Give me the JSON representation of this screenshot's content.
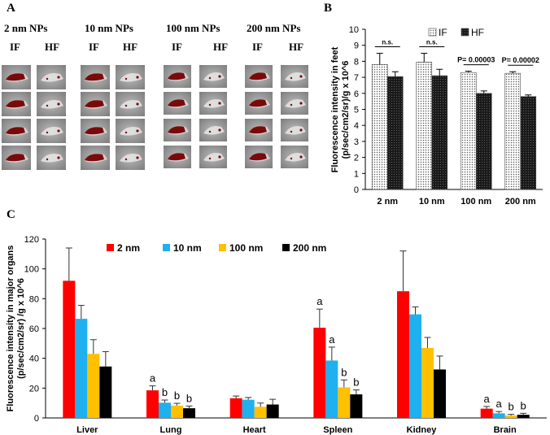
{
  "panel_labels": {
    "a": "A",
    "b": "B",
    "c": "C"
  },
  "panel_a": {
    "groups": [
      {
        "title": "2 nm NPs",
        "if_label": "IF",
        "hf_label": "HF"
      },
      {
        "title": "10 nm NPs",
        "if_label": "IF",
        "hf_label": "HF"
      },
      {
        "title": "100 nm NPs",
        "if_label": "IF",
        "hf_label": "HF"
      },
      {
        "title": "200 nm NPs",
        "if_label": "IF",
        "hf_label": "HF"
      }
    ]
  },
  "chart_data": [
    {
      "id": "B",
      "type": "bar",
      "ylabel": "Fluorescence intensity in feet (p/sec/cm2/sr)/g x 10^6",
      "ylim": [
        0,
        10
      ],
      "yticks": [
        "0",
        "1",
        "2",
        "3",
        "4",
        "5",
        "6",
        "7",
        "8",
        "9",
        "10"
      ],
      "categories": [
        "2 nm",
        "10 nm",
        "100 nm",
        "200 nm"
      ],
      "legend_position": "top",
      "series": [
        {
          "name": "IF",
          "values": [
            7.8,
            7.95,
            7.3,
            7.25
          ],
          "errors": [
            0.7,
            0.55,
            0.08,
            0.1
          ]
        },
        {
          "name": "HF",
          "values": [
            7.05,
            7.1,
            6.0,
            5.8
          ],
          "errors": [
            0.3,
            0.4,
            0.15,
            0.1
          ]
        }
      ],
      "annotations": [
        "n.s.",
        "n.s.",
        "P= 0.00003",
        "P= 0.00002"
      ]
    },
    {
      "id": "C",
      "type": "bar",
      "ylabel": "Fluorescence intensity in major organs (p/sec/cm2/sr) /g x 10^6",
      "ylim": [
        0,
        120
      ],
      "yticks": [
        "0",
        "20",
        "40",
        "60",
        "80",
        "100",
        "120"
      ],
      "categories": [
        "Liver",
        "Lung",
        "Heart",
        "Spleen",
        "Kidney",
        "Brain"
      ],
      "legend_position": "top",
      "series": [
        {
          "name": "2 nm",
          "color": "#ff0000",
          "values": [
            92,
            18.5,
            13.2,
            60.5,
            85,
            6.2
          ],
          "errors": [
            22,
            3,
            1.5,
            12.5,
            27,
            1.5
          ]
        },
        {
          "name": "10 nm",
          "color": "#1fb0f0",
          "values": [
            66.5,
            10.2,
            12.2,
            38.5,
            69.5,
            3.1
          ],
          "errors": [
            9,
            1.8,
            1.5,
            9,
            5,
            1.2
          ]
        },
        {
          "name": "100 nm",
          "color": "#ffc000",
          "values": [
            43,
            8.3,
            7.5,
            20.5,
            47,
            1.6
          ],
          "errors": [
            9.5,
            1.5,
            2.5,
            5,
            7,
            0.8
          ]
        },
        {
          "name": "200 nm",
          "color": "#000000",
          "values": [
            34.5,
            6.5,
            9,
            15.8,
            32.5,
            2.1
          ],
          "errors": [
            10,
            1.5,
            3.5,
            3,
            9,
            1
          ]
        }
      ],
      "significance": {
        "Lung": [
          "a",
          "b",
          "b",
          "b"
        ],
        "Spleen": [
          "a",
          "a",
          "b",
          "b"
        ],
        "Brain": [
          "a",
          "a",
          "b",
          "b"
        ]
      }
    }
  ]
}
